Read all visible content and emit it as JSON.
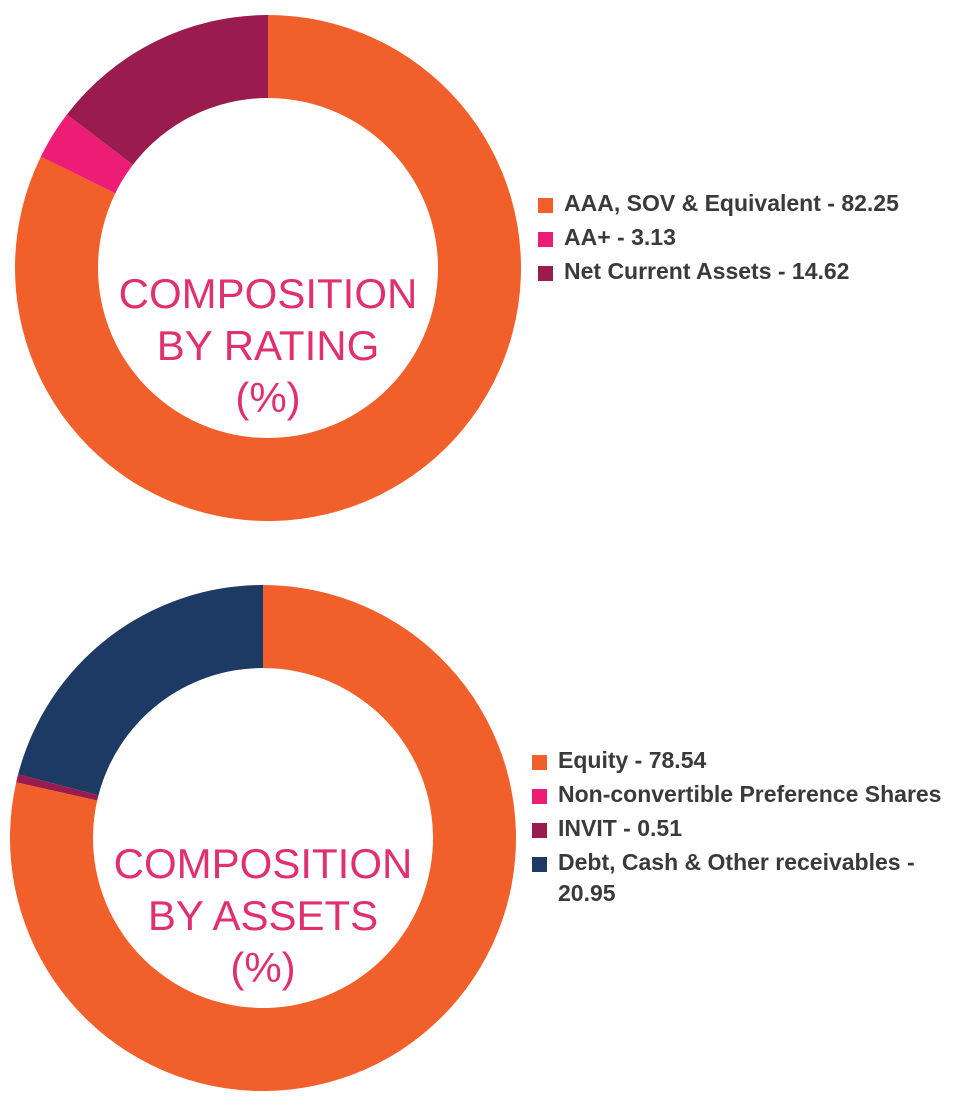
{
  "chart_data": [
    {
      "type": "pie",
      "title": "COMPOSITION BY RATING (%)",
      "title_lines": [
        "COMPOSITION",
        "BY RATING",
        "(%)"
      ],
      "categories": [
        "AAA, SOV & Equivalent",
        "AA+",
        "Net Current Assets"
      ],
      "values": [
        82.25,
        3.13,
        14.62
      ],
      "colors": [
        "#f15f2a",
        "#ed1c74",
        "#9a1b4e"
      ],
      "legend_labels": [
        "AAA, SOV & Equivalent - 82.25",
        "AA+ - 3.13",
        "Net Current Assets - 14.62"
      ],
      "legend_position": "right",
      "donut": true
    },
    {
      "type": "pie",
      "title": "COMPOSITION BY ASSETS (%)",
      "title_lines": [
        "COMPOSITION",
        "BY ASSETS",
        "(%)"
      ],
      "categories": [
        "Equity",
        "Non-convertible Preference Shares",
        "INVIT",
        "Debt, Cash & Other receivables"
      ],
      "values": [
        78.54,
        0.0,
        0.51,
        20.95
      ],
      "colors": [
        "#f15f2a",
        "#ed1c74",
        "#9a1b4e",
        "#1c3a63"
      ],
      "legend_labels": [
        "Equity - 78.54",
        "Non-convertible Preference Shares",
        "INVIT - 0.51",
        "Debt, Cash & Other receivables - 20.95"
      ],
      "legend_position": "right",
      "donut": true
    }
  ]
}
